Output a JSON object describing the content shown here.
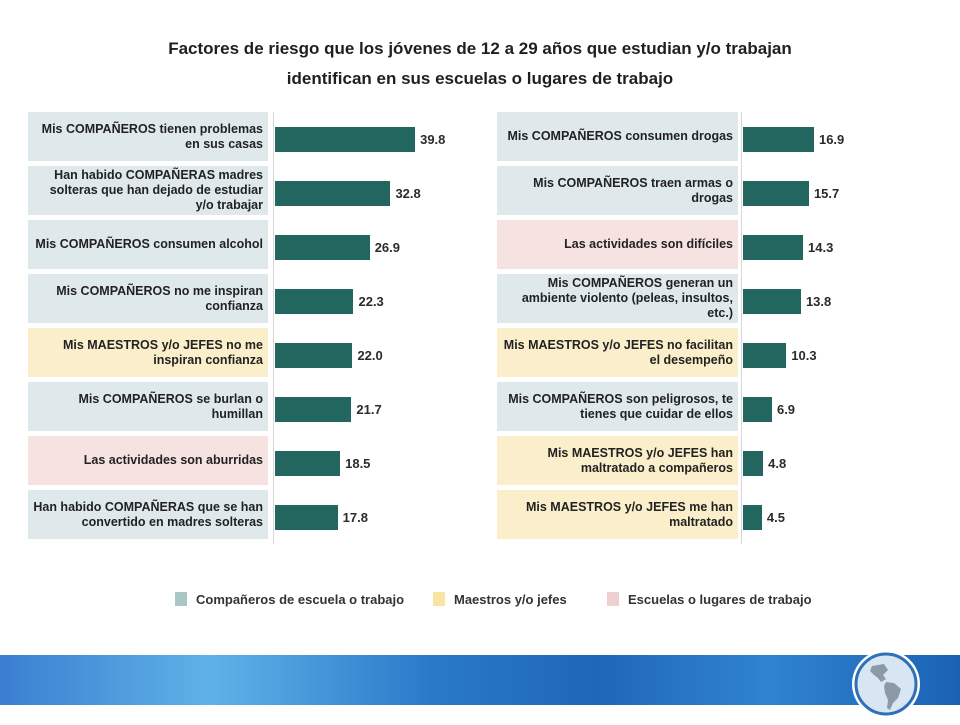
{
  "title_line1": "Factores de riesgo que los jóvenes de 12 a 29 años que estudian  y/o trabajan",
  "title_line2": "identifican en sus escuelas o lugares de trabajo",
  "colors": {
    "bar": "#22665f",
    "companeros": "#dfe9ec",
    "maestros": "#fbefcb",
    "escuelas": "#f7e2e2",
    "legend_companeros": "#a9c6c9",
    "legend_maestros": "#f9e3a0",
    "legend_escuelas": "#f0cfd0"
  },
  "legend": [
    {
      "label": "Compañeros de escuela o trabajo",
      "category": "companeros"
    },
    {
      "label": "Maestros y/o jefes",
      "category": "maestros"
    },
    {
      "label": "Escuelas o lugares de trabajo",
      "category": "escuelas"
    }
  ],
  "chart_data": [
    {
      "type": "bar",
      "orientation": "horizontal",
      "xlim": [
        0,
        40
      ],
      "categories": [
        "Mis COMPAÑEROS tienen problemas en sus casas",
        "Han habido COMPAÑERAS madres solteras que han dejado de estudiar y/o trabajar",
        "Mis COMPAÑEROS consumen alcohol",
        "Mis COMPAÑEROS no me inspiran confianza",
        "Mis MAESTROS y/o JEFES no me inspiran confianza",
        "Mis COMPAÑEROS se burlan o humillan",
        "Las actividades son aburridas",
        "Han habido COMPAÑERAS que se han convertido en madres solteras"
      ],
      "values": [
        39.8,
        32.8,
        26.9,
        22.3,
        22.0,
        21.7,
        18.5,
        17.8
      ],
      "value_labels": [
        "39.8",
        "32.8",
        "26.9",
        "22.3",
        "22.0",
        "21.7",
        "18.5",
        "17.8"
      ],
      "groups": [
        "companeros",
        "companeros",
        "companeros",
        "companeros",
        "maestros",
        "companeros",
        "escuelas",
        "companeros"
      ]
    },
    {
      "type": "bar",
      "orientation": "horizontal",
      "xlim": [
        0,
        17
      ],
      "categories": [
        "Mis COMPAÑEROS consumen drogas",
        "Mis COMPAÑEROS traen armas o drogas",
        "Las actividades son difíciles",
        "Mis COMPAÑEROS generan un ambiente violento (peleas, insultos, etc.)",
        "Mis MAESTROS y/o JEFES no facilitan el desempeño",
        "Mis COMPAÑEROS son peligrosos, te tienes que cuidar de ellos",
        "Mis MAESTROS y/o JEFES  han maltratado a compañeros",
        "Mis MAESTROS y/o JEFES  me han maltratado"
      ],
      "values": [
        16.9,
        15.7,
        14.3,
        13.8,
        10.3,
        6.9,
        4.8,
        4.5
      ],
      "value_labels": [
        "16.9",
        "15.7",
        "14.3",
        "13.8",
        "10.3",
        "6.9",
        "4.8",
        "4.5"
      ],
      "groups": [
        "companeros",
        "companeros",
        "escuelas",
        "companeros",
        "maestros",
        "companeros",
        "maestros",
        "maestros"
      ]
    }
  ]
}
